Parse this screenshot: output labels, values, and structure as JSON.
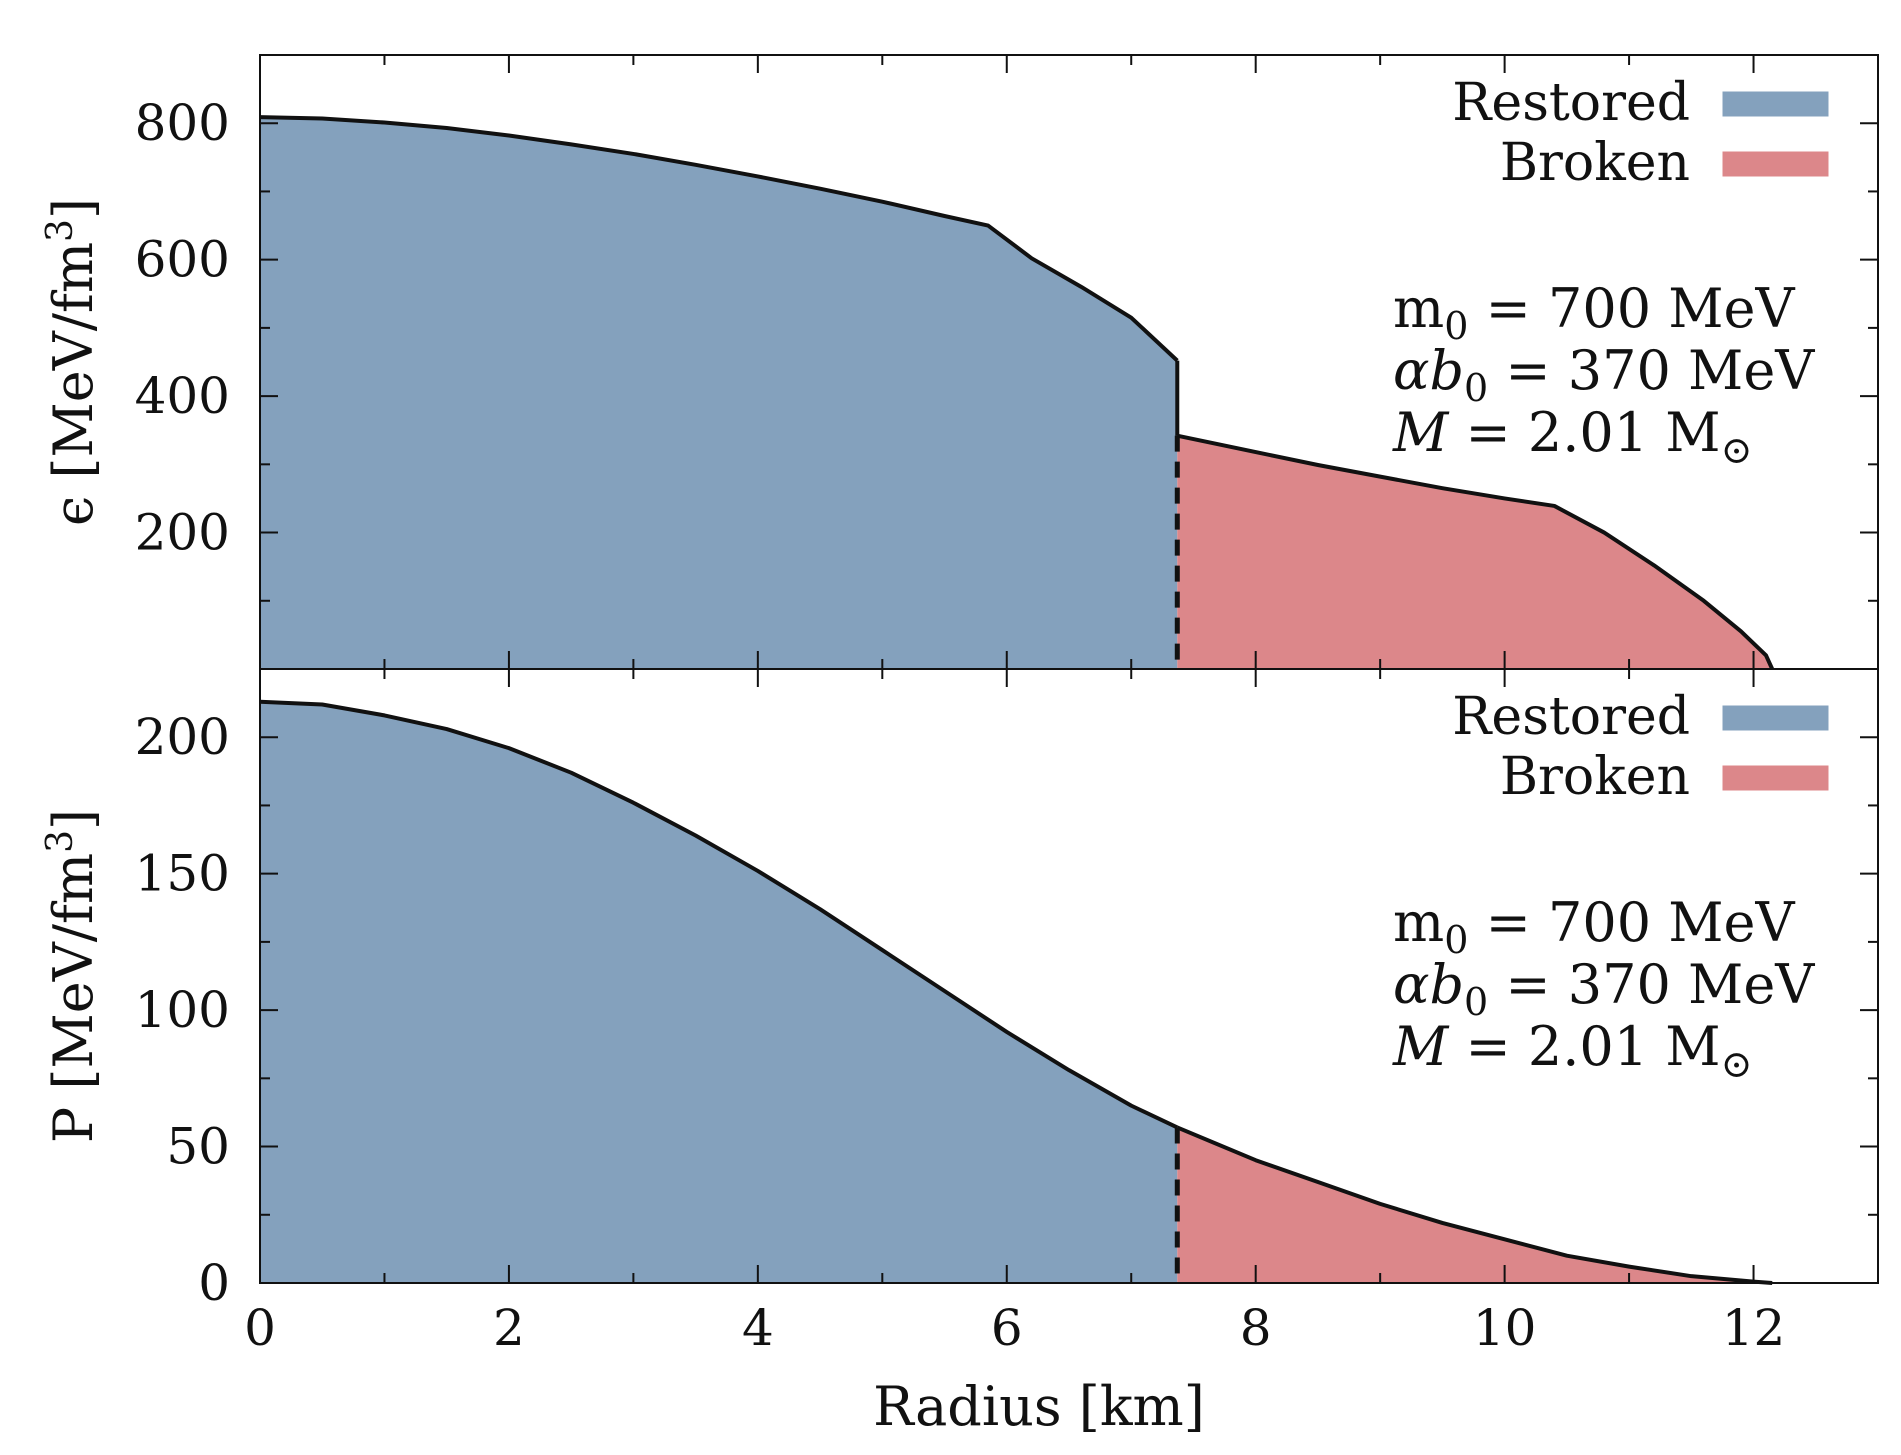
{
  "chart_data": [
    {
      "type": "area",
      "panel": "top",
      "ylabel_symbol": "ϵ",
      "ylabel_units": "[MeV/fm",
      "ylabel_exp": "3",
      "ylabel_close": "]",
      "xlim": [
        0,
        13
      ],
      "ylim": [
        0,
        900
      ],
      "yticks": [
        200,
        400,
        600,
        800
      ],
      "grid": false,
      "legend_position": "top-right",
      "legend": [
        {
          "label": "Restored",
          "color": "#84a1bd"
        },
        {
          "label": "Broken",
          "color": "#dc878a"
        }
      ],
      "annotation": [
        {
          "text": "m",
          "sub": "0",
          "rest": " = 700 MeV"
        },
        {
          "text": "αb",
          "sub": "0",
          "rest": " = 370 MeV"
        },
        {
          "text": "M",
          "sub": "",
          "rest": " = 2.01 M",
          "sun": "⊙"
        }
      ],
      "transition_radius": 7.37,
      "series": [
        {
          "name": "Restored",
          "color": "#84a1bd",
          "x": [
            0,
            0.5,
            1,
            1.5,
            2,
            2.5,
            3,
            3.5,
            4,
            4.5,
            5,
            5.5,
            5.85,
            6.2,
            6.6,
            7.0,
            7.37
          ],
          "y": [
            809,
            807,
            801,
            793,
            782,
            769,
            755,
            739,
            722,
            704,
            685,
            664,
            650,
            602,
            560,
            515,
            452
          ]
        },
        {
          "name": "Broken",
          "color": "#dc878a",
          "x": [
            7.37,
            8,
            8.5,
            9,
            9.5,
            10,
            10.4,
            10.8,
            11.2,
            11.6,
            11.9,
            12.1,
            12.15
          ],
          "y": [
            342,
            318,
            299,
            282,
            265,
            250,
            239,
            200,
            152,
            100,
            55,
            20,
            0
          ]
        }
      ]
    },
    {
      "type": "area",
      "panel": "bottom",
      "ylabel_symbol": "P",
      "ylabel_units": "[MeV/fm",
      "ylabel_exp": "3",
      "ylabel_close": "]",
      "xlabel": "Radius [km]",
      "xlim": [
        0,
        13
      ],
      "ylim": [
        0,
        225
      ],
      "xticks": [
        0,
        2,
        4,
        6,
        8,
        10,
        12
      ],
      "yticks": [
        0,
        50,
        100,
        150,
        200
      ],
      "grid": false,
      "legend_position": "top-right",
      "legend": [
        {
          "label": "Restored",
          "color": "#84a1bd"
        },
        {
          "label": "Broken",
          "color": "#dc878a"
        }
      ],
      "annotation": [
        {
          "text": "m",
          "sub": "0",
          "rest": " = 700 MeV"
        },
        {
          "text": "αb",
          "sub": "0",
          "rest": " = 370 MeV"
        },
        {
          "text": "M",
          "sub": "",
          "rest": " = 2.01 M",
          "sun": "⊙"
        }
      ],
      "transition_radius": 7.37,
      "series": [
        {
          "name": "Restored",
          "color": "#84a1bd",
          "x": [
            0,
            0.5,
            1,
            1.5,
            2,
            2.5,
            3,
            3.5,
            4,
            4.5,
            5,
            5.5,
            6,
            6.5,
            7,
            7.37
          ],
          "y": [
            213,
            212,
            208,
            203,
            196,
            187,
            176,
            164,
            151,
            137,
            122,
            107,
            92,
            78,
            65,
            57
          ]
        },
        {
          "name": "Broken",
          "color": "#dc878a",
          "x": [
            7.37,
            8,
            8.5,
            9,
            9.5,
            10,
            10.5,
            11,
            11.5,
            12,
            12.15
          ],
          "y": [
            57,
            45,
            37,
            29,
            22,
            16,
            10,
            6,
            2.5,
            0.5,
            0
          ]
        }
      ]
    }
  ]
}
